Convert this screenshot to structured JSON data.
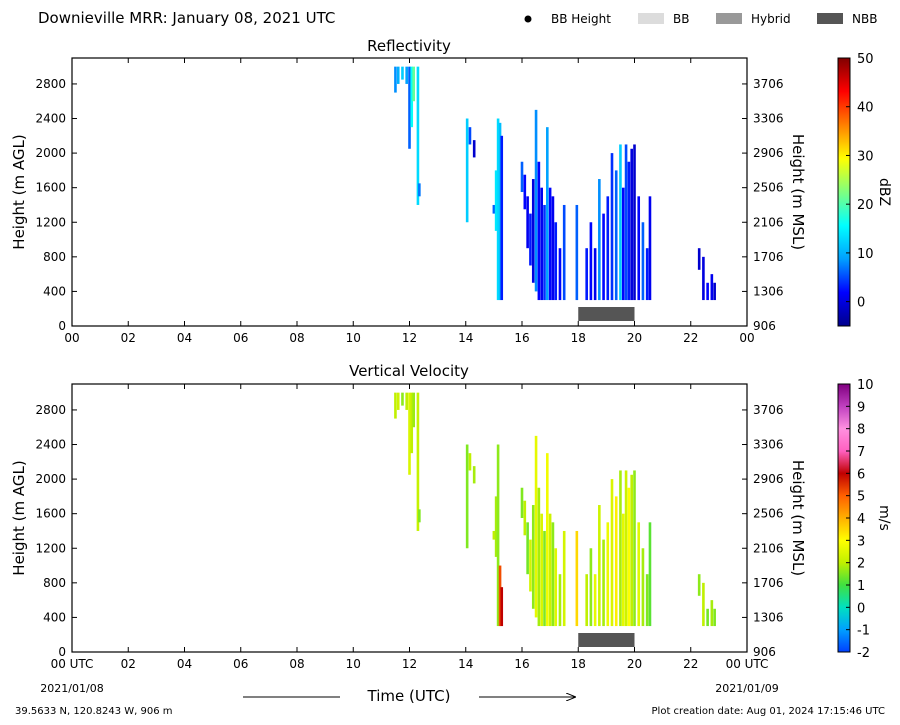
{
  "header": {
    "title": "Downieville MRR:  January 08, 2021 UTC",
    "legend": [
      {
        "label": "BB Height",
        "kind": "dot",
        "color": "#000000"
      },
      {
        "label": "BB",
        "kind": "swatch",
        "color": "#dcdcdc"
      },
      {
        "label": "Hybrid",
        "kind": "swatch",
        "color": "#999999"
      },
      {
        "label": "NBB",
        "kind": "swatch",
        "color": "#555555"
      }
    ]
  },
  "footer": {
    "location": "39.5633 N, 120.8243 W, 906 m",
    "creation": "Plot creation date: Aug 01, 2024 17:15:46 UTC",
    "time_axis_label": "Time (UTC)",
    "date_start": "2021/01/08",
    "date_end": "2021/01/09"
  },
  "chart_data": [
    {
      "type": "heatmap",
      "title": "Reflectivity",
      "ylabel": "Height (m AGL)",
      "ylabel_right": "Height (m MSL)",
      "x_ticks": [
        "00",
        "02",
        "04",
        "06",
        "08",
        "10",
        "12",
        "14",
        "16",
        "18",
        "20",
        "22",
        "00"
      ],
      "xlim": [
        0,
        24
      ],
      "ylim": [
        0,
        3100
      ],
      "y_ticks": [
        0,
        400,
        800,
        1200,
        1600,
        2000,
        2400,
        2800
      ],
      "y_ticks_right": [
        "906",
        "1306",
        "1706",
        "2106",
        "2506",
        "2906",
        "3306",
        "3706"
      ],
      "colorbar": {
        "label": "dBZ",
        "min": -5,
        "max": 50,
        "ticks": [
          0,
          10,
          20,
          30,
          40,
          50
        ],
        "stops": [
          "#00008b",
          "#0000ff",
          "#00a0ff",
          "#00ffff",
          "#7fff7f",
          "#ffff00",
          "#ff8000",
          "#ff0000",
          "#800000"
        ]
      },
      "bb_bar": {
        "type": "NBB",
        "start": 18.0,
        "end": 20.0,
        "color": "#555555"
      },
      "columns": [
        {
          "t": 11.5,
          "y0": 2700,
          "y1": 3000,
          "v": 8
        },
        {
          "t": 11.6,
          "y0": 2800,
          "y1": 3000,
          "v": 10
        },
        {
          "t": 11.75,
          "y0": 2850,
          "y1": 3000,
          "v": 12
        },
        {
          "t": 11.9,
          "y0": 2800,
          "y1": 3000,
          "v": 9
        },
        {
          "t": 12.0,
          "y0": 2050,
          "y1": 3000,
          "v": 6
        },
        {
          "t": 12.08,
          "y0": 2300,
          "y1": 3000,
          "v": 16
        },
        {
          "t": 12.15,
          "y0": 2600,
          "y1": 3000,
          "v": 21
        },
        {
          "t": 12.3,
          "y0": 1400,
          "y1": 3000,
          "v": 13
        },
        {
          "t": 12.35,
          "y0": 1500,
          "y1": 1650,
          "v": 7
        },
        {
          "t": 14.05,
          "y0": 1200,
          "y1": 2400,
          "v": 12
        },
        {
          "t": 14.15,
          "y0": 2100,
          "y1": 2300,
          "v": 5
        },
        {
          "t": 14.3,
          "y0": 1950,
          "y1": 2150,
          "v": -1
        },
        {
          "t": 15.0,
          "y0": 1300,
          "y1": 1400,
          "v": 6
        },
        {
          "t": 15.08,
          "y0": 1100,
          "y1": 1800,
          "v": 14
        },
        {
          "t": 15.15,
          "y0": 300,
          "y1": 2400,
          "v": 13
        },
        {
          "t": 15.22,
          "y0": 300,
          "y1": 2350,
          "v": 11
        },
        {
          "t": 15.28,
          "y0": 300,
          "y1": 2200,
          "v": 3
        },
        {
          "t": 16.0,
          "y0": 1550,
          "y1": 1900,
          "v": 6
        },
        {
          "t": 16.1,
          "y0": 1350,
          "y1": 1750,
          "v": 2
        },
        {
          "t": 16.2,
          "y0": 900,
          "y1": 1500,
          "v": 1
        },
        {
          "t": 16.3,
          "y0": 700,
          "y1": 1300,
          "v": 3
        },
        {
          "t": 16.4,
          "y0": 500,
          "y1": 1700,
          "v": 0
        },
        {
          "t": 16.5,
          "y0": 400,
          "y1": 2500,
          "v": 8
        },
        {
          "t": 16.6,
          "y0": 300,
          "y1": 1900,
          "v": 2
        },
        {
          "t": 16.7,
          "y0": 300,
          "y1": 1600,
          "v": 1
        },
        {
          "t": 16.8,
          "y0": 300,
          "y1": 1400,
          "v": 4
        },
        {
          "t": 16.9,
          "y0": 300,
          "y1": 2300,
          "v": 9
        },
        {
          "t": 17.0,
          "y0": 300,
          "y1": 1600,
          "v": 2
        },
        {
          "t": 17.1,
          "y0": 300,
          "y1": 1500,
          "v": 1
        },
        {
          "t": 17.2,
          "y0": 300,
          "y1": 1200,
          "v": 3
        },
        {
          "t": 17.35,
          "y0": 300,
          "y1": 900,
          "v": 2
        },
        {
          "t": 17.5,
          "y0": 300,
          "y1": 1400,
          "v": 5
        },
        {
          "t": 17.95,
          "y0": 300,
          "y1": 1400,
          "v": 6
        },
        {
          "t": 18.3,
          "y0": 300,
          "y1": 900,
          "v": 3
        },
        {
          "t": 18.45,
          "y0": 300,
          "y1": 1200,
          "v": 2
        },
        {
          "t": 18.6,
          "y0": 300,
          "y1": 900,
          "v": 1
        },
        {
          "t": 18.75,
          "y0": 300,
          "y1": 1700,
          "v": 8
        },
        {
          "t": 18.9,
          "y0": 300,
          "y1": 1300,
          "v": 2
        },
        {
          "t": 19.05,
          "y0": 300,
          "y1": 1500,
          "v": 3
        },
        {
          "t": 19.2,
          "y0": 300,
          "y1": 2000,
          "v": 4
        },
        {
          "t": 19.35,
          "y0": 300,
          "y1": 1800,
          "v": 6
        },
        {
          "t": 19.5,
          "y0": 300,
          "y1": 2100,
          "v": 12
        },
        {
          "t": 19.6,
          "y0": 300,
          "y1": 1600,
          "v": 2
        },
        {
          "t": 19.7,
          "y0": 300,
          "y1": 2100,
          "v": 5
        },
        {
          "t": 19.8,
          "y0": 300,
          "y1": 1900,
          "v": 3
        },
        {
          "t": 19.9,
          "y0": 300,
          "y1": 2050,
          "v": 0
        },
        {
          "t": 20.0,
          "y0": 300,
          "y1": 2100,
          "v": -1
        },
        {
          "t": 20.15,
          "y0": 300,
          "y1": 1500,
          "v": 2
        },
        {
          "t": 20.3,
          "y0": 300,
          "y1": 1200,
          "v": 6
        },
        {
          "t": 20.45,
          "y0": 300,
          "y1": 900,
          "v": 3
        },
        {
          "t": 20.55,
          "y0": 300,
          "y1": 1500,
          "v": 1
        },
        {
          "t": 22.3,
          "y0": 650,
          "y1": 900,
          "v": -1
        },
        {
          "t": 22.45,
          "y0": 300,
          "y1": 800,
          "v": 0
        },
        {
          "t": 22.6,
          "y0": 300,
          "y1": 500,
          "v": 2
        },
        {
          "t": 22.75,
          "y0": 300,
          "y1": 600,
          "v": 1
        },
        {
          "t": 22.85,
          "y0": 300,
          "y1": 500,
          "v": -1
        }
      ]
    },
    {
      "type": "heatmap",
      "title": "Vertical Velocity",
      "ylabel": "Height (m AGL)",
      "ylabel_right": "Height (m MSL)",
      "x_ticks": [
        "00 UTC",
        "02",
        "04",
        "06",
        "08",
        "10",
        "12",
        "14",
        "16",
        "18",
        "20",
        "22",
        "00 UTC"
      ],
      "xlim": [
        0,
        24
      ],
      "ylim": [
        0,
        3100
      ],
      "y_ticks": [
        0,
        400,
        800,
        1200,
        1600,
        2000,
        2400,
        2800
      ],
      "y_ticks_right": [
        "906",
        "1306",
        "1706",
        "2106",
        "2506",
        "2906",
        "3306",
        "3706"
      ],
      "colorbar": {
        "label": "m/s",
        "min": -2,
        "max": 10,
        "ticks": [
          -2,
          -1,
          0,
          1,
          2,
          3,
          4,
          5,
          6,
          7,
          8,
          9,
          10
        ],
        "stops": [
          "#0040ff",
          "#00a0ff",
          "#00e0c0",
          "#40e040",
          "#c0f000",
          "#ffff00",
          "#ffb000",
          "#ff6000",
          "#c00000",
          "#ff60c0",
          "#ff90e0",
          "#c040c0",
          "#800080"
        ]
      },
      "bb_bar": {
        "type": "NBB",
        "start": 18.0,
        "end": 20.0,
        "color": "#555555"
      },
      "columns": [
        {
          "t": 11.5,
          "y0": 2700,
          "y1": 3000,
          "v": 2.0
        },
        {
          "t": 11.6,
          "y0": 2800,
          "y1": 3000,
          "v": 2.2
        },
        {
          "t": 11.75,
          "y0": 2850,
          "y1": 3000,
          "v": 1.6
        },
        {
          "t": 11.9,
          "y0": 2800,
          "y1": 3000,
          "v": 2.0
        },
        {
          "t": 12.0,
          "y0": 2050,
          "y1": 3000,
          "v": 2.4
        },
        {
          "t": 12.08,
          "y0": 2300,
          "y1": 3000,
          "v": 2.0
        },
        {
          "t": 12.15,
          "y0": 2600,
          "y1": 3000,
          "v": 1.7
        },
        {
          "t": 12.3,
          "y0": 1400,
          "y1": 3000,
          "v": 2.1
        },
        {
          "t": 12.35,
          "y0": 1500,
          "y1": 1650,
          "v": 1.5
        },
        {
          "t": 14.05,
          "y0": 1200,
          "y1": 2400,
          "v": 1.5
        },
        {
          "t": 14.15,
          "y0": 2100,
          "y1": 2300,
          "v": 2.0
        },
        {
          "t": 14.3,
          "y0": 1950,
          "y1": 2150,
          "v": 1.8
        },
        {
          "t": 15.0,
          "y0": 1300,
          "y1": 1400,
          "v": 2.0
        },
        {
          "t": 15.08,
          "y0": 1100,
          "y1": 1800,
          "v": 1.8
        },
        {
          "t": 15.15,
          "y0": 300,
          "y1": 2400,
          "v": 1.6
        },
        {
          "t": 15.22,
          "y0": 300,
          "y1": 1000,
          "v": 5.2
        },
        {
          "t": 15.28,
          "y0": 300,
          "y1": 750,
          "v": 6.0
        },
        {
          "t": 16.0,
          "y0": 1550,
          "y1": 1900,
          "v": 1.5
        },
        {
          "t": 16.1,
          "y0": 1350,
          "y1": 1750,
          "v": 2.0
        },
        {
          "t": 16.2,
          "y0": 900,
          "y1": 1500,
          "v": 1.4
        },
        {
          "t": 16.3,
          "y0": 700,
          "y1": 1300,
          "v": 2.3
        },
        {
          "t": 16.4,
          "y0": 500,
          "y1": 1700,
          "v": 1.6
        },
        {
          "t": 16.5,
          "y0": 400,
          "y1": 2500,
          "v": 2.6
        },
        {
          "t": 16.6,
          "y0": 300,
          "y1": 1900,
          "v": 1.8
        },
        {
          "t": 16.7,
          "y0": 300,
          "y1": 1600,
          "v": 2.4
        },
        {
          "t": 16.8,
          "y0": 300,
          "y1": 1400,
          "v": 1.5
        },
        {
          "t": 16.9,
          "y0": 300,
          "y1": 2300,
          "v": 2.8
        },
        {
          "t": 17.0,
          "y0": 300,
          "y1": 1600,
          "v": 2.2
        },
        {
          "t": 17.1,
          "y0": 300,
          "y1": 1500,
          "v": 1.6
        },
        {
          "t": 17.2,
          "y0": 300,
          "y1": 1200,
          "v": 2.5
        },
        {
          "t": 17.35,
          "y0": 300,
          "y1": 900,
          "v": 1.8
        },
        {
          "t": 17.5,
          "y0": 300,
          "y1": 1400,
          "v": 2.3
        },
        {
          "t": 17.95,
          "y0": 300,
          "y1": 1400,
          "v": 3.5
        },
        {
          "t": 18.3,
          "y0": 300,
          "y1": 900,
          "v": 2.0
        },
        {
          "t": 18.45,
          "y0": 300,
          "y1": 1200,
          "v": 1.6
        },
        {
          "t": 18.6,
          "y0": 300,
          "y1": 900,
          "v": 2.6
        },
        {
          "t": 18.75,
          "y0": 300,
          "y1": 1700,
          "v": 2.2
        },
        {
          "t": 18.9,
          "y0": 300,
          "y1": 1300,
          "v": 1.8
        },
        {
          "t": 19.05,
          "y0": 300,
          "y1": 1500,
          "v": 2.7
        },
        {
          "t": 19.2,
          "y0": 300,
          "y1": 2000,
          "v": 2.4
        },
        {
          "t": 19.35,
          "y0": 300,
          "y1": 1800,
          "v": 3.2
        },
        {
          "t": 19.5,
          "y0": 300,
          "y1": 2100,
          "v": 1.8
        },
        {
          "t": 19.6,
          "y0": 300,
          "y1": 1600,
          "v": 2.6
        },
        {
          "t": 19.7,
          "y0": 300,
          "y1": 2100,
          "v": 2.2
        },
        {
          "t": 19.8,
          "y0": 300,
          "y1": 1900,
          "v": 3.0
        },
        {
          "t": 19.9,
          "y0": 300,
          "y1": 2050,
          "v": 2.0
        },
        {
          "t": 20.0,
          "y0": 300,
          "y1": 2100,
          "v": 1.6
        },
        {
          "t": 20.15,
          "y0": 300,
          "y1": 1500,
          "v": 2.5
        },
        {
          "t": 20.3,
          "y0": 300,
          "y1": 1200,
          "v": 1.8
        },
        {
          "t": 20.45,
          "y0": 300,
          "y1": 900,
          "v": 1.5
        },
        {
          "t": 20.55,
          "y0": 300,
          "y1": 1500,
          "v": 1.2
        },
        {
          "t": 22.3,
          "y0": 650,
          "y1": 900,
          "v": 1.6
        },
        {
          "t": 22.45,
          "y0": 300,
          "y1": 800,
          "v": 2.0
        },
        {
          "t": 22.6,
          "y0": 300,
          "y1": 500,
          "v": 1.4
        },
        {
          "t": 22.75,
          "y0": 300,
          "y1": 600,
          "v": 1.8
        },
        {
          "t": 22.85,
          "y0": 300,
          "y1": 500,
          "v": 1.5
        }
      ]
    }
  ]
}
